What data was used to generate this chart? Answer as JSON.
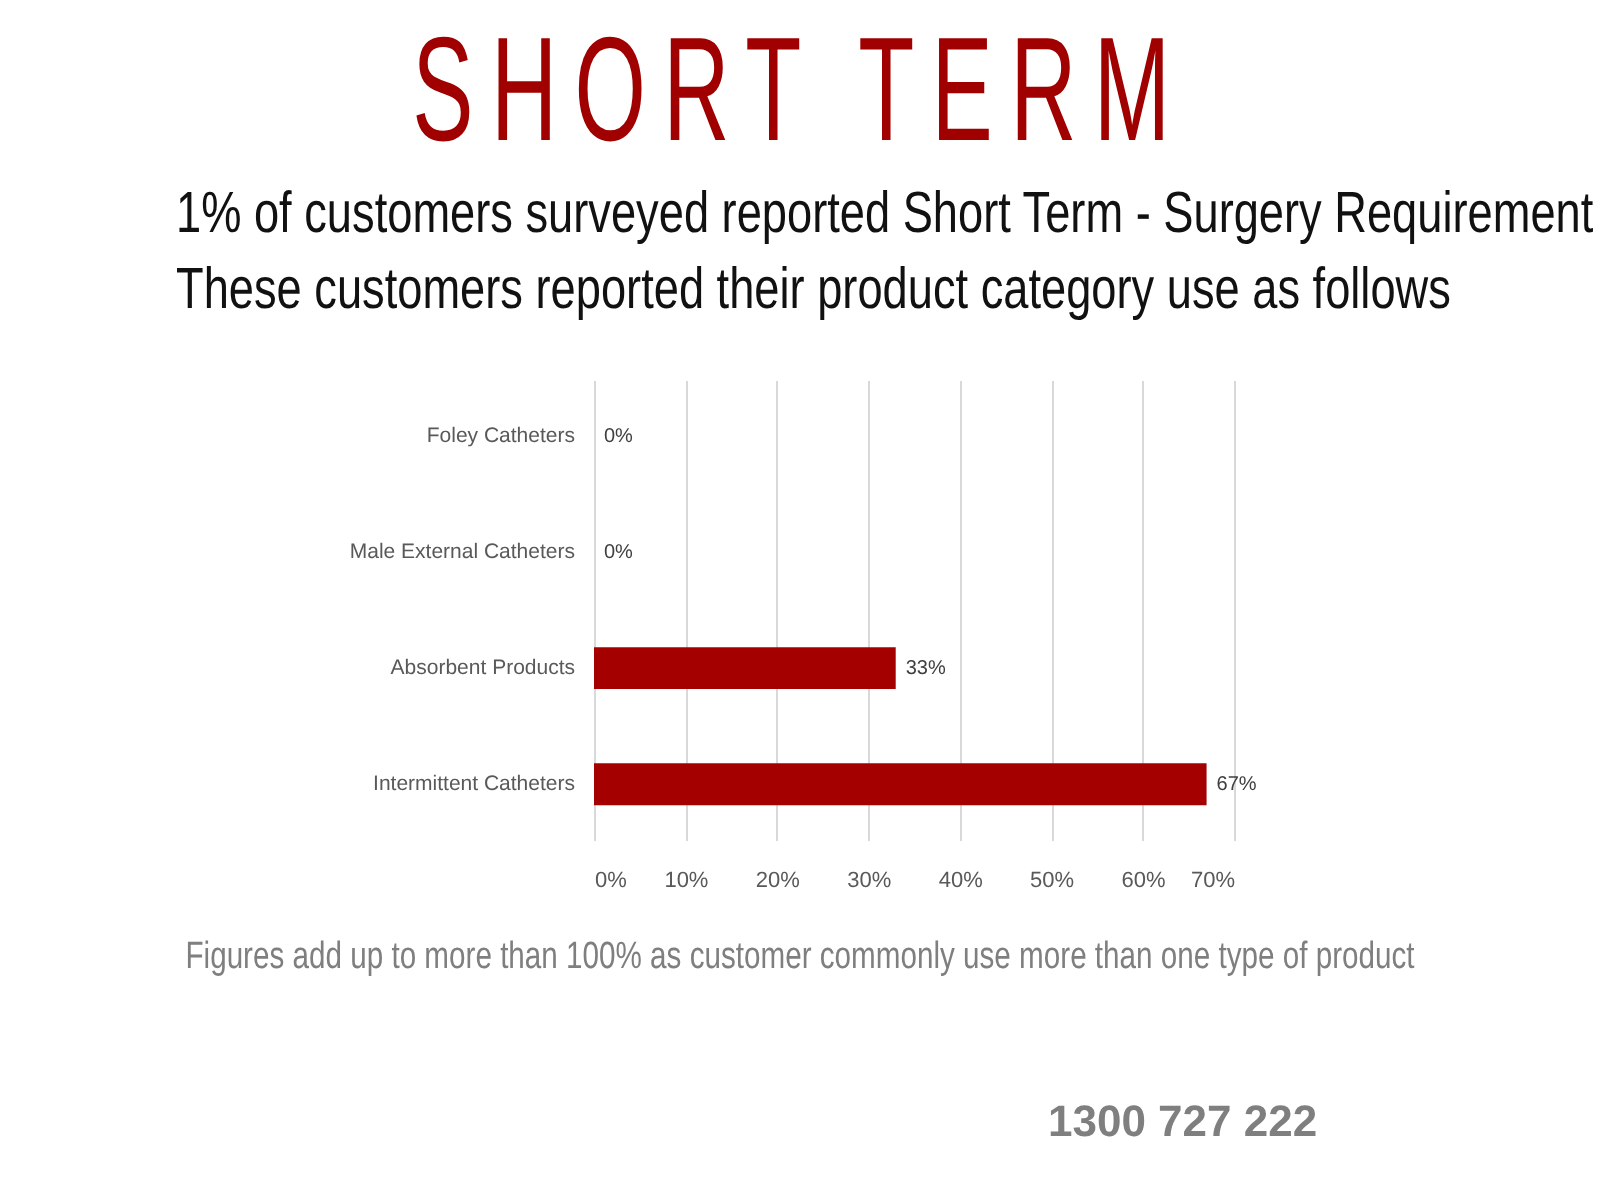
{
  "chart_data": {
    "type": "bar",
    "orientation": "horizontal",
    "title": "SHORT TERM",
    "subtitle": "1% of customers surveyed reported Short Term - Surgery Requirement\nThese customers reported their product category use as follows",
    "categories": [
      "Foley Catheters",
      "Male External Catheters",
      "Absorbent Products",
      "Intermittent Catheters"
    ],
    "values": [
      0,
      0,
      33,
      67
    ],
    "value_labels": [
      "0%",
      "0%",
      "33%",
      "67%"
    ],
    "color": "#a50000",
    "xlim": [
      0,
      70
    ],
    "xticks": [
      {
        "value": 0,
        "label": "0%"
      },
      {
        "value": 10,
        "label": "10%"
      },
      {
        "value": 20,
        "label": "20%"
      },
      {
        "value": 30,
        "label": "30%"
      },
      {
        "value": 40,
        "label": "40%"
      },
      {
        "value": 50,
        "label": "50%"
      },
      {
        "value": 60,
        "label": "60%"
      },
      {
        "value": 70,
        "label": "70%"
      }
    ],
    "grid": "x",
    "annotations": [
      "Figures add up to more than 100% as customer commonly use more than one type of product",
      "1300 727 222"
    ]
  }
}
